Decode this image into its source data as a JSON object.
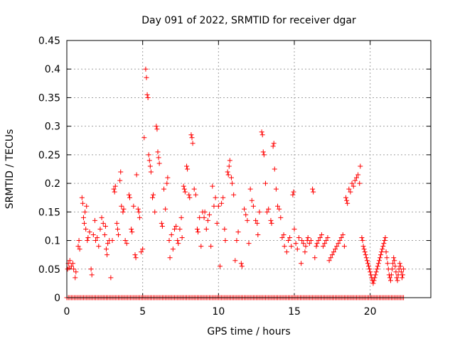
{
  "chart_data": {
    "type": "scatter",
    "title": "Day 091 of 2022, SRMTID for receiver dgar",
    "xlabel": "GPS time / hours",
    "ylabel": "SRMTID / TECUs",
    "xlim": [
      0,
      24
    ],
    "ylim": [
      0,
      0.45
    ],
    "xticks": [
      0,
      5,
      10,
      15,
      20
    ],
    "xtick_labels": [
      "0",
      "5",
      "10",
      "15",
      "20"
    ],
    "yticks": [
      0,
      0.05,
      0.1,
      0.15,
      0.2,
      0.25,
      0.3,
      0.35,
      0.4,
      0.45
    ],
    "ytick_labels": [
      "0",
      "0.05",
      "0.1",
      "0.15",
      "0.2",
      "0.25",
      "0.3",
      "0.35",
      "0.4",
      "0.45"
    ],
    "grid": true,
    "marker": "+",
    "color": "#ff0000",
    "baseline": {
      "name": "zero values",
      "y": 0,
      "x_start": 0,
      "x_end": 22.2,
      "x_step": 0.1
    },
    "series": [
      {
        "name": "SRMTID",
        "points": [
          [
            0.05,
            0.05
          ],
          [
            0.1,
            0.06
          ],
          [
            0.15,
            0.052
          ],
          [
            0.2,
            0.065
          ],
          [
            0.3,
            0.055
          ],
          [
            0.4,
            0.06
          ],
          [
            0.45,
            0.05
          ],
          [
            0.55,
            0.035
          ],
          [
            0.6,
            0.045
          ],
          [
            0.75,
            0.09
          ],
          [
            0.8,
            0.1
          ],
          [
            0.85,
            0.085
          ],
          [
            1.0,
            0.175
          ],
          [
            1.05,
            0.165
          ],
          [
            1.1,
            0.14
          ],
          [
            1.15,
            0.13
          ],
          [
            1.2,
            0.15
          ],
          [
            1.25,
            0.12
          ],
          [
            1.3,
            0.16
          ],
          [
            1.35,
            0.1
          ],
          [
            1.4,
            0.105
          ],
          [
            1.5,
            0.115
          ],
          [
            1.6,
            0.05
          ],
          [
            1.65,
            0.04
          ],
          [
            1.75,
            0.11
          ],
          [
            1.85,
            0.135
          ],
          [
            1.9,
            0.1
          ],
          [
            2.0,
            0.105
          ],
          [
            2.1,
            0.09
          ],
          [
            2.2,
            0.12
          ],
          [
            2.3,
            0.14
          ],
          [
            2.4,
            0.13
          ],
          [
            2.5,
            0.11
          ],
          [
            2.55,
            0.125
          ],
          [
            2.6,
            0.085
          ],
          [
            2.65,
            0.075
          ],
          [
            2.7,
            0.095
          ],
          [
            2.8,
            0.1
          ],
          [
            2.9,
            0.035
          ],
          [
            3.0,
            0.1
          ],
          [
            3.1,
            0.19
          ],
          [
            3.15,
            0.185
          ],
          [
            3.2,
            0.195
          ],
          [
            3.3,
            0.13
          ],
          [
            3.35,
            0.12
          ],
          [
            3.4,
            0.11
          ],
          [
            3.5,
            0.205
          ],
          [
            3.55,
            0.22
          ],
          [
            3.6,
            0.16
          ],
          [
            3.7,
            0.15
          ],
          [
            3.75,
            0.155
          ],
          [
            3.85,
            0.1
          ],
          [
            3.95,
            0.095
          ],
          [
            4.1,
            0.18
          ],
          [
            4.15,
            0.175
          ],
          [
            4.25,
            0.12
          ],
          [
            4.3,
            0.115
          ],
          [
            4.4,
            0.16
          ],
          [
            4.5,
            0.075
          ],
          [
            4.55,
            0.07
          ],
          [
            4.6,
            0.215
          ],
          [
            4.7,
            0.155
          ],
          [
            4.75,
            0.15
          ],
          [
            4.8,
            0.14
          ],
          [
            4.9,
            0.08
          ],
          [
            5.0,
            0.085
          ],
          [
            5.1,
            0.28
          ],
          [
            5.2,
            0.4
          ],
          [
            5.25,
            0.385
          ],
          [
            5.3,
            0.355
          ],
          [
            5.35,
            0.35
          ],
          [
            5.4,
            0.25
          ],
          [
            5.45,
            0.24
          ],
          [
            5.5,
            0.23
          ],
          [
            5.55,
            0.22
          ],
          [
            5.65,
            0.175
          ],
          [
            5.7,
            0.18
          ],
          [
            5.8,
            0.15
          ],
          [
            5.9,
            0.3
          ],
          [
            5.95,
            0.295
          ],
          [
            6.0,
            0.255
          ],
          [
            6.05,
            0.245
          ],
          [
            6.1,
            0.235
          ],
          [
            6.25,
            0.13
          ],
          [
            6.3,
            0.125
          ],
          [
            6.4,
            0.19
          ],
          [
            6.5,
            0.155
          ],
          [
            6.6,
            0.2
          ],
          [
            6.65,
            0.21
          ],
          [
            6.75,
            0.1
          ],
          [
            6.8,
            0.07
          ],
          [
            6.9,
            0.11
          ],
          [
            7.0,
            0.085
          ],
          [
            7.1,
            0.12
          ],
          [
            7.2,
            0.125
          ],
          [
            7.3,
            0.1
          ],
          [
            7.35,
            0.095
          ],
          [
            7.45,
            0.12
          ],
          [
            7.55,
            0.14
          ],
          [
            7.6,
            0.105
          ],
          [
            7.7,
            0.195
          ],
          [
            7.75,
            0.19
          ],
          [
            7.8,
            0.185
          ],
          [
            7.9,
            0.23
          ],
          [
            7.95,
            0.225
          ],
          [
            8.05,
            0.18
          ],
          [
            8.1,
            0.175
          ],
          [
            8.2,
            0.285
          ],
          [
            8.25,
            0.28
          ],
          [
            8.3,
            0.27
          ],
          [
            8.4,
            0.19
          ],
          [
            8.5,
            0.18
          ],
          [
            8.6,
            0.12
          ],
          [
            8.65,
            0.115
          ],
          [
            8.75,
            0.14
          ],
          [
            8.85,
            0.09
          ],
          [
            8.95,
            0.15
          ],
          [
            9.05,
            0.14
          ],
          [
            9.1,
            0.15
          ],
          [
            9.2,
            0.12
          ],
          [
            9.3,
            0.135
          ],
          [
            9.4,
            0.145
          ],
          [
            9.5,
            0.09
          ],
          [
            9.6,
            0.195
          ],
          [
            9.7,
            0.16
          ],
          [
            9.8,
            0.175
          ],
          [
            9.9,
            0.13
          ],
          [
            10.0,
            0.16
          ],
          [
            10.1,
            0.055
          ],
          [
            10.2,
            0.165
          ],
          [
            10.3,
            0.175
          ],
          [
            10.4,
            0.12
          ],
          [
            10.45,
            0.1
          ],
          [
            10.6,
            0.22
          ],
          [
            10.65,
            0.215
          ],
          [
            10.7,
            0.23
          ],
          [
            10.75,
            0.24
          ],
          [
            10.85,
            0.21
          ],
          [
            10.9,
            0.2
          ],
          [
            11.0,
            0.18
          ],
          [
            11.1,
            0.065
          ],
          [
            11.2,
            0.1
          ],
          [
            11.3,
            0.115
          ],
          [
            11.5,
            0.06
          ],
          [
            11.55,
            0.055
          ],
          [
            11.7,
            0.155
          ],
          [
            11.8,
            0.145
          ],
          [
            11.9,
            0.135
          ],
          [
            12.0,
            0.095
          ],
          [
            12.1,
            0.19
          ],
          [
            12.2,
            0.17
          ],
          [
            12.3,
            0.16
          ],
          [
            12.45,
            0.135
          ],
          [
            12.55,
            0.13
          ],
          [
            12.6,
            0.11
          ],
          [
            12.7,
            0.15
          ],
          [
            12.85,
            0.29
          ],
          [
            12.9,
            0.285
          ],
          [
            12.95,
            0.255
          ],
          [
            13.0,
            0.25
          ],
          [
            13.1,
            0.2
          ],
          [
            13.2,
            0.15
          ],
          [
            13.3,
            0.155
          ],
          [
            13.45,
            0.135
          ],
          [
            13.5,
            0.13
          ],
          [
            13.6,
            0.265
          ],
          [
            13.65,
            0.27
          ],
          [
            13.7,
            0.225
          ],
          [
            13.8,
            0.19
          ],
          [
            13.9,
            0.16
          ],
          [
            14.0,
            0.155
          ],
          [
            14.1,
            0.14
          ],
          [
            14.2,
            0.105
          ],
          [
            14.3,
            0.11
          ],
          [
            14.35,
            0.09
          ],
          [
            14.5,
            0.08
          ],
          [
            14.6,
            0.1
          ],
          [
            14.7,
            0.105
          ],
          [
            14.8,
            0.09
          ],
          [
            14.9,
            0.18
          ],
          [
            14.95,
            0.185
          ],
          [
            15.0,
            0.12
          ],
          [
            15.1,
            0.095
          ],
          [
            15.2,
            0.085
          ],
          [
            15.3,
            0.105
          ],
          [
            15.45,
            0.06
          ],
          [
            15.5,
            0.1
          ],
          [
            15.6,
            0.095
          ],
          [
            15.7,
            0.08
          ],
          [
            15.75,
            0.09
          ],
          [
            15.85,
            0.1
          ],
          [
            15.9,
            0.105
          ],
          [
            16.0,
            0.095
          ],
          [
            16.1,
            0.1
          ],
          [
            16.2,
            0.19
          ],
          [
            16.25,
            0.185
          ],
          [
            16.35,
            0.07
          ],
          [
            16.45,
            0.09
          ],
          [
            16.5,
            0.095
          ],
          [
            16.6,
            0.1
          ],
          [
            16.7,
            0.105
          ],
          [
            16.8,
            0.11
          ],
          [
            16.9,
            0.09
          ],
          [
            17.0,
            0.095
          ],
          [
            17.1,
            0.1
          ],
          [
            17.2,
            0.105
          ],
          [
            17.3,
            0.065
          ],
          [
            17.4,
            0.07
          ],
          [
            17.5,
            0.075
          ],
          [
            17.6,
            0.08
          ],
          [
            17.7,
            0.085
          ],
          [
            17.8,
            0.09
          ],
          [
            17.9,
            0.095
          ],
          [
            18.0,
            0.1
          ],
          [
            18.1,
            0.105
          ],
          [
            18.2,
            0.11
          ],
          [
            18.3,
            0.09
          ],
          [
            18.4,
            0.175
          ],
          [
            18.45,
            0.17
          ],
          [
            18.5,
            0.165
          ],
          [
            18.6,
            0.19
          ],
          [
            18.7,
            0.185
          ],
          [
            18.8,
            0.2
          ],
          [
            18.9,
            0.195
          ],
          [
            19.0,
            0.205
          ],
          [
            19.1,
            0.21
          ],
          [
            19.2,
            0.215
          ],
          [
            19.3,
            0.2
          ],
          [
            19.35,
            0.23
          ],
          [
            19.45,
            0.105
          ],
          [
            19.5,
            0.1
          ],
          [
            19.55,
            0.09
          ],
          [
            19.6,
            0.085
          ],
          [
            19.65,
            0.08
          ],
          [
            19.7,
            0.075
          ],
          [
            19.75,
            0.07
          ],
          [
            19.8,
            0.065
          ],
          [
            19.85,
            0.06
          ],
          [
            19.9,
            0.055
          ],
          [
            19.95,
            0.05
          ],
          [
            20.0,
            0.045
          ],
          [
            20.05,
            0.04
          ],
          [
            20.1,
            0.035
          ],
          [
            20.15,
            0.03
          ],
          [
            20.2,
            0.025
          ],
          [
            20.25,
            0.03
          ],
          [
            20.3,
            0.035
          ],
          [
            20.35,
            0.04
          ],
          [
            20.4,
            0.045
          ],
          [
            20.45,
            0.05
          ],
          [
            20.5,
            0.055
          ],
          [
            20.55,
            0.06
          ],
          [
            20.6,
            0.065
          ],
          [
            20.65,
            0.07
          ],
          [
            20.7,
            0.075
          ],
          [
            20.75,
            0.08
          ],
          [
            20.8,
            0.085
          ],
          [
            20.85,
            0.09
          ],
          [
            20.9,
            0.095
          ],
          [
            20.95,
            0.1
          ],
          [
            21.0,
            0.105
          ],
          [
            21.05,
            0.08
          ],
          [
            21.1,
            0.07
          ],
          [
            21.15,
            0.06
          ],
          [
            21.2,
            0.05
          ],
          [
            21.25,
            0.04
          ],
          [
            21.3,
            0.035
          ],
          [
            21.35,
            0.03
          ],
          [
            21.4,
            0.04
          ],
          [
            21.45,
            0.05
          ],
          [
            21.5,
            0.06
          ],
          [
            21.55,
            0.07
          ],
          [
            21.6,
            0.065
          ],
          [
            21.65,
            0.055
          ],
          [
            21.7,
            0.045
          ],
          [
            21.75,
            0.035
          ],
          [
            21.8,
            0.03
          ],
          [
            21.85,
            0.04
          ],
          [
            21.9,
            0.05
          ],
          [
            21.95,
            0.06
          ],
          [
            22.0,
            0.055
          ],
          [
            22.05,
            0.045
          ],
          [
            22.1,
            0.035
          ],
          [
            22.15,
            0.04
          ],
          [
            22.2,
            0.05
          ]
        ]
      }
    ]
  }
}
